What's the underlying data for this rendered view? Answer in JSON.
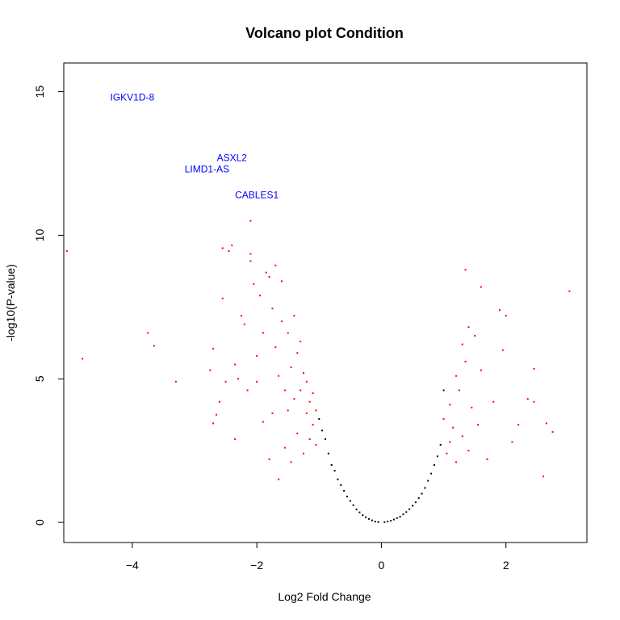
{
  "chart_data": {
    "type": "scatter",
    "title": "Volcano plot Condition",
    "xlabel": "Log2 Fold Change",
    "ylabel": "-log10(P-value)",
    "xlim": [
      -5.1,
      3.3
    ],
    "ylim": [
      -0.7,
      16
    ],
    "x_ticks": [
      -4,
      -2,
      0,
      2
    ],
    "y_ticks": [
      0,
      5,
      10,
      15
    ],
    "grid": false,
    "colors": {
      "not_significant": "#000000",
      "significant": "#ff0000",
      "gene_label": "#0000ff"
    },
    "labeled_genes": [
      {
        "label": "IGKV1D-8",
        "x": -4.0,
        "y": 14.8
      },
      {
        "label": "ASXL2",
        "x": -2.4,
        "y": 12.7
      },
      {
        "label": "LIMD1-AS",
        "x": -2.8,
        "y": 12.3
      },
      {
        "label": "CABLES1",
        "x": -2.0,
        "y": 11.4
      }
    ],
    "series": [
      {
        "values": [
          [
            -5.05,
            9.45
          ],
          [
            -4.8,
            5.7
          ],
          [
            -3.75,
            6.6
          ],
          [
            -3.65,
            6.15
          ],
          [
            -3.3,
            4.9
          ],
          [
            -2.75,
            5.3
          ],
          [
            -2.7,
            6.05
          ],
          [
            -2.7,
            3.45
          ],
          [
            -2.65,
            3.75
          ],
          [
            -2.6,
            4.2
          ],
          [
            -2.55,
            9.55
          ],
          [
            -2.55,
            7.8
          ],
          [
            -2.5,
            4.9
          ],
          [
            -2.45,
            9.45
          ],
          [
            -2.4,
            9.65
          ],
          [
            -2.35,
            2.9
          ],
          [
            -2.35,
            5.5
          ],
          [
            -2.3,
            5.0
          ],
          [
            -2.25,
            7.2
          ],
          [
            -2.2,
            6.9
          ],
          [
            -2.15,
            4.6
          ],
          [
            -2.1,
            10.5
          ],
          [
            -2.1,
            9.35
          ],
          [
            -2.1,
            9.1
          ],
          [
            -2.05,
            8.3
          ],
          [
            -2.0,
            5.8
          ],
          [
            -2.0,
            4.9
          ],
          [
            -1.95,
            7.9
          ],
          [
            -1.9,
            3.5
          ],
          [
            -1.9,
            6.6
          ],
          [
            -1.85,
            8.7
          ],
          [
            -1.8,
            8.55
          ],
          [
            -1.8,
            2.2
          ],
          [
            -1.75,
            3.8
          ],
          [
            -1.75,
            7.45
          ],
          [
            -1.7,
            8.95
          ],
          [
            -1.7,
            6.1
          ],
          [
            -1.65,
            5.1
          ],
          [
            -1.65,
            1.5
          ],
          [
            -1.6,
            8.4
          ],
          [
            -1.6,
            7.0
          ],
          [
            -1.55,
            4.6
          ],
          [
            -1.55,
            2.6
          ],
          [
            -1.5,
            6.6
          ],
          [
            -1.5,
            3.9
          ],
          [
            -1.45,
            5.4
          ],
          [
            -1.45,
            2.1
          ],
          [
            -1.4,
            7.2
          ],
          [
            -1.4,
            4.3
          ],
          [
            -1.35,
            5.9
          ],
          [
            -1.35,
            3.1
          ],
          [
            -1.3,
            6.3
          ],
          [
            -1.3,
            4.6
          ],
          [
            -1.25,
            2.4
          ],
          [
            -1.25,
            5.2
          ],
          [
            -1.2,
            3.8
          ],
          [
            -1.2,
            4.9
          ],
          [
            -1.15,
            2.9
          ],
          [
            -1.15,
            4.2
          ],
          [
            -1.1,
            3.4
          ],
          [
            -1.1,
            4.5
          ],
          [
            -1.05,
            2.7
          ],
          [
            -1.05,
            3.9
          ],
          [
            1.0,
            3.6
          ],
          [
            1.05,
            2.4
          ],
          [
            1.1,
            4.1
          ],
          [
            1.1,
            2.8
          ],
          [
            1.15,
            3.3
          ],
          [
            1.2,
            5.1
          ],
          [
            1.2,
            2.1
          ],
          [
            1.25,
            4.6
          ],
          [
            1.3,
            6.2
          ],
          [
            1.3,
            3.0
          ],
          [
            1.35,
            8.8
          ],
          [
            1.35,
            5.6
          ],
          [
            1.4,
            6.8
          ],
          [
            1.4,
            2.5
          ],
          [
            1.45,
            4.0
          ],
          [
            1.5,
            6.5
          ],
          [
            1.55,
            3.4
          ],
          [
            1.6,
            8.2
          ],
          [
            1.6,
            5.3
          ],
          [
            1.7,
            2.2
          ],
          [
            1.8,
            4.2
          ],
          [
            1.9,
            7.4
          ],
          [
            1.95,
            6.0
          ],
          [
            2.0,
            7.2
          ],
          [
            2.1,
            2.8
          ],
          [
            2.2,
            3.4
          ],
          [
            2.35,
            4.3
          ],
          [
            2.45,
            4.2
          ],
          [
            2.45,
            5.35
          ],
          [
            2.6,
            1.6
          ],
          [
            2.65,
            3.45
          ],
          [
            2.75,
            3.15
          ],
          [
            3.02,
            8.05
          ]
        ]
      },
      {
        "values": [
          [
            -1.0,
            3.6
          ],
          [
            -0.95,
            3.2
          ],
          [
            -0.9,
            2.9
          ],
          [
            -0.85,
            2.4
          ],
          [
            -0.8,
            2.0
          ],
          [
            -0.75,
            1.8
          ],
          [
            -0.7,
            1.5
          ],
          [
            -0.65,
            1.3
          ],
          [
            -0.6,
            1.1
          ],
          [
            -0.55,
            0.9
          ],
          [
            -0.5,
            0.75
          ],
          [
            -0.45,
            0.6
          ],
          [
            -0.4,
            0.45
          ],
          [
            -0.35,
            0.35
          ],
          [
            -0.3,
            0.25
          ],
          [
            -0.25,
            0.18
          ],
          [
            -0.2,
            0.12
          ],
          [
            -0.15,
            0.07
          ],
          [
            -0.1,
            0.03
          ],
          [
            -0.05,
            0.01
          ],
          [
            0.05,
            0.01
          ],
          [
            0.1,
            0.03
          ],
          [
            0.15,
            0.06
          ],
          [
            0.2,
            0.1
          ],
          [
            0.25,
            0.15
          ],
          [
            0.3,
            0.2
          ],
          [
            0.35,
            0.28
          ],
          [
            0.4,
            0.36
          ],
          [
            0.45,
            0.46
          ],
          [
            0.5,
            0.58
          ],
          [
            0.55,
            0.7
          ],
          [
            0.6,
            0.85
          ],
          [
            0.65,
            1.0
          ],
          [
            0.7,
            1.2
          ],
          [
            0.75,
            1.45
          ],
          [
            0.8,
            1.7
          ],
          [
            0.85,
            2.0
          ],
          [
            0.9,
            2.3
          ],
          [
            0.95,
            2.7
          ],
          [
            1.0,
            4.6
          ]
        ]
      }
    ]
  }
}
